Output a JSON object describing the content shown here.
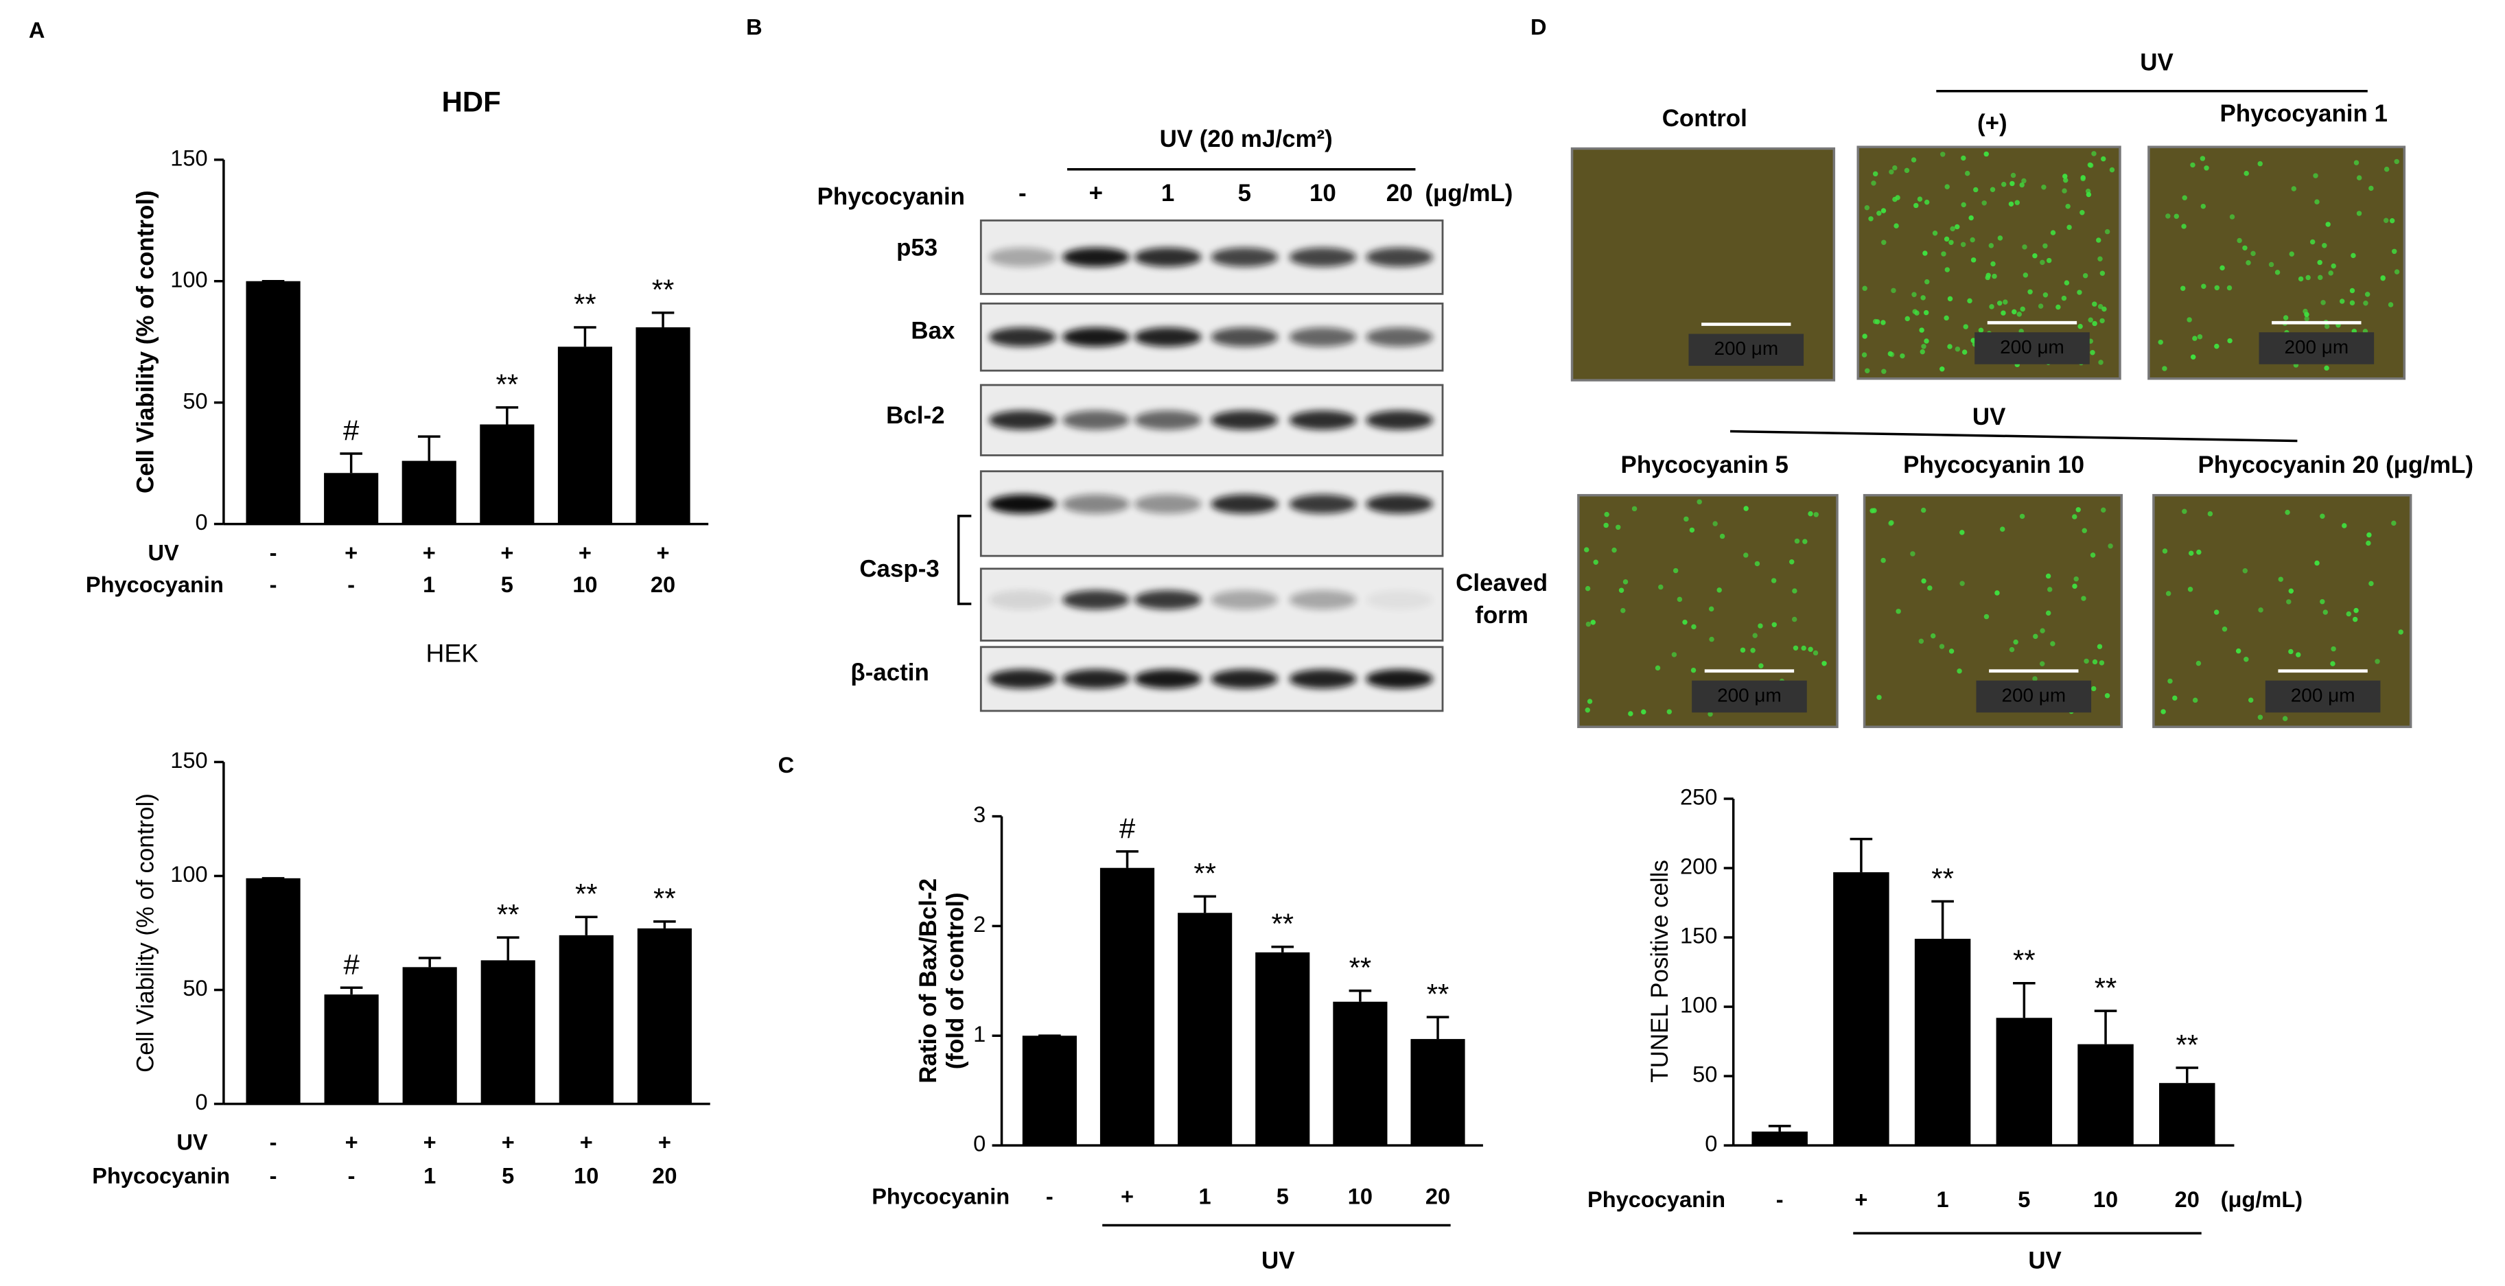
{
  "panel_labels": [
    "A",
    "B",
    "C",
    "D"
  ],
  "chart_data": [
    {
      "type": "bar",
      "title": "HDF",
      "ylabel": [
        "Cell Viability (% of control)"
      ],
      "row1_label": "UV",
      "row1": [
        "-",
        "+",
        "+",
        "+",
        "+",
        "+"
      ],
      "category_label": "Phycocyanin",
      "categories": [
        "-",
        "-",
        "1",
        "5",
        "10",
        "20"
      ],
      "values": [
        100,
        21,
        26,
        41,
        73,
        81
      ],
      "errors": [
        0,
        8,
        10,
        7,
        8,
        6
      ],
      "annotations": [
        null,
        "#",
        null,
        "**",
        "**",
        "**"
      ],
      "color": "#000000",
      "ylim": [
        0,
        150
      ],
      "yticks": [
        0,
        50,
        100,
        150
      ]
    },
    {
      "type": "bar",
      "title": "HEK",
      "ylabel": [
        "Cell Viability (% of control)"
      ],
      "row1_label": "UV",
      "row1": [
        "-",
        "+",
        "+",
        "+",
        "+",
        "+"
      ],
      "category_label": "Phycocyanin",
      "categories": [
        "-",
        "-",
        "1",
        "5",
        "10",
        "20"
      ],
      "values": [
        99,
        48,
        60,
        63,
        74,
        77
      ],
      "errors": [
        0,
        3,
        4,
        10,
        8,
        3
      ],
      "annotations": [
        null,
        "#",
        null,
        "**",
        "**",
        "**"
      ],
      "color": "#000000",
      "ylim": [
        0,
        150
      ],
      "yticks": [
        0,
        50,
        100,
        150
      ]
    },
    {
      "type": "bar",
      "ylabel": [
        "Ratio of Bax/Bcl-2",
        "(fold of control)"
      ],
      "category_label": "Phycocyanin",
      "categories": [
        "-",
        "+",
        "1",
        "5",
        "10",
        "20"
      ],
      "group_label": "UV",
      "values": [
        1.0,
        2.53,
        2.12,
        1.76,
        1.31,
        0.97
      ],
      "errors": [
        0,
        0.15,
        0.15,
        0.05,
        0.1,
        0.2
      ],
      "annotations": [
        null,
        "#",
        "**",
        "**",
        "**",
        "**"
      ],
      "color": "#000000",
      "ylim": [
        0,
        3
      ],
      "yticks": [
        0,
        1,
        2,
        3
      ]
    },
    {
      "type": "bar",
      "ylabel": [
        "TUNEL Positive cells"
      ],
      "category_label": "Phycocyanin",
      "categories": [
        "-",
        "+",
        "1",
        "5",
        "10",
        "20"
      ],
      "unit": "(μg/mL)",
      "group_label": "UV",
      "values": [
        10,
        197,
        149,
        92,
        73,
        45
      ],
      "errors": [
        4,
        24,
        27,
        25,
        24,
        11
      ],
      "annotations": [
        null,
        null,
        "**",
        "**",
        "**",
        "**"
      ],
      "color": "#000000",
      "ylim": [
        0,
        250
      ],
      "yticks": [
        0,
        50,
        100,
        150,
        200,
        250
      ]
    }
  ],
  "western_blot": {
    "header": "UV (20 mJ/cm²)",
    "row_label": "Phycocyanin",
    "lanes": [
      "-",
      "+",
      "1",
      "5",
      "10",
      "20"
    ],
    "unit": "(μg/mL)",
    "proteins": [
      "p53",
      "Bax",
      "Bcl-2",
      "Casp-3",
      "β-actin"
    ],
    "cleaved": [
      "Cleaved",
      "form"
    ]
  },
  "tunel_images": {
    "top_group": "UV",
    "bottom_group": "UV",
    "panels": [
      "Control",
      "(+)",
      "Phycocyanin 1",
      "Phycocyanin 5",
      "Phycocyanin 10",
      "Phycocyanin  20 (μg/mL)"
    ],
    "scale_bar": "200 μm"
  }
}
